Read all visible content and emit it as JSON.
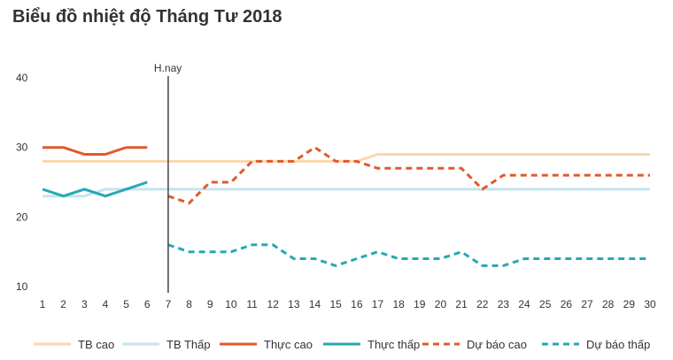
{
  "chart_data": {
    "type": "line",
    "title": "Biểu đồ nhiệt độ Tháng Tư 2018",
    "xlabel": "",
    "ylabel": "",
    "xlim": [
      1,
      30
    ],
    "ylim": [
      10,
      40
    ],
    "yticks": [
      40,
      30,
      20,
      10
    ],
    "xticks": [
      1,
      2,
      3,
      4,
      5,
      6,
      7,
      8,
      9,
      10,
      11,
      12,
      13,
      14,
      15,
      16,
      17,
      18,
      19,
      20,
      21,
      22,
      23,
      24,
      25,
      26,
      27,
      28,
      29,
      30
    ],
    "marker": {
      "x": 7,
      "label": "H.nay"
    },
    "legend_position": "bottom",
    "series": [
      {
        "name": "TB cao",
        "color": "#fad6b0",
        "dash": "solid",
        "x": [
          1,
          2,
          3,
          4,
          5,
          6,
          7,
          8,
          9,
          10,
          11,
          12,
          13,
          14,
          15,
          16,
          17,
          18,
          19,
          20,
          21,
          22,
          23,
          24,
          25,
          26,
          27,
          28,
          29,
          30
        ],
        "values": [
          28,
          28,
          28,
          28,
          28,
          28,
          28,
          28,
          28,
          28,
          28,
          28,
          28,
          28,
          28,
          28,
          29,
          29,
          29,
          29,
          29,
          29,
          29,
          29,
          29,
          29,
          29,
          29,
          29,
          29
        ]
      },
      {
        "name": "TB Thấp",
        "color": "#c5e4ee",
        "dash": "solid",
        "x": [
          1,
          2,
          3,
          4,
          5,
          6,
          7,
          8,
          9,
          10,
          11,
          12,
          13,
          14,
          15,
          16,
          17,
          18,
          19,
          20,
          21,
          22,
          23,
          24,
          25,
          26,
          27,
          28,
          29,
          30
        ],
        "values": [
          23,
          23,
          23,
          24,
          24,
          24,
          24,
          24,
          24,
          24,
          24,
          24,
          24,
          24,
          24,
          24,
          24,
          24,
          24,
          24,
          24,
          24,
          24,
          24,
          24,
          24,
          24,
          24,
          24,
          24
        ]
      },
      {
        "name": "Thực cao",
        "color": "#e05a2b",
        "dash": "solid",
        "x": [
          1,
          2,
          3,
          4,
          5,
          6
        ],
        "values": [
          30,
          30,
          29,
          29,
          30,
          30
        ]
      },
      {
        "name": "Thực thấp",
        "color": "#26a8b5",
        "dash": "solid",
        "x": [
          1,
          2,
          3,
          4,
          5,
          6
        ],
        "values": [
          24,
          23,
          24,
          23,
          24,
          25
        ]
      },
      {
        "name": "Dự báo cao",
        "color": "#e05a2b",
        "dash": "dashed",
        "x": [
          7,
          8,
          9,
          10,
          11,
          12,
          13,
          14,
          15,
          16,
          17,
          18,
          19,
          20,
          21,
          22,
          23,
          24,
          25,
          26,
          27,
          28,
          29,
          30
        ],
        "values": [
          23,
          22,
          25,
          25,
          28,
          28,
          28,
          30,
          28,
          28,
          27,
          27,
          27,
          27,
          27,
          24,
          26,
          26,
          26,
          26,
          26,
          26,
          26,
          26
        ]
      },
      {
        "name": "Dự báo thấp",
        "color": "#26a8b5",
        "dash": "dashed",
        "x": [
          7,
          8,
          9,
          10,
          11,
          12,
          13,
          14,
          15,
          16,
          17,
          18,
          19,
          20,
          21,
          22,
          23,
          24,
          25,
          26,
          27,
          28,
          29,
          30
        ],
        "values": [
          16,
          15,
          15,
          15,
          16,
          16,
          14,
          14,
          13,
          14,
          15,
          14,
          14,
          14,
          15,
          13,
          13,
          14,
          14,
          14,
          14,
          14,
          14,
          14
        ]
      }
    ]
  }
}
